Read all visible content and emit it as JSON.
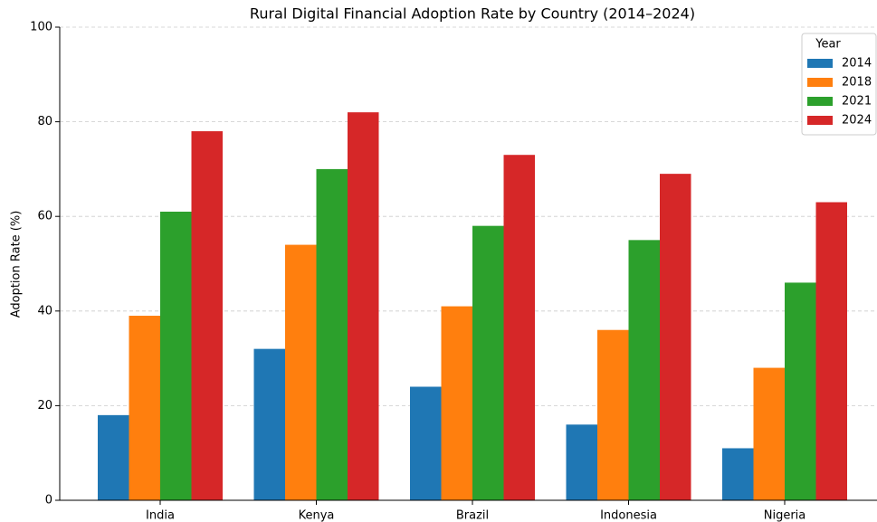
{
  "chart_data": {
    "type": "bar",
    "title": "Rural Digital Financial Adoption Rate by Country (2014–2024)",
    "ylabel": "Adoption Rate (%)",
    "legend_title": "Year",
    "legend_position": "upper right",
    "grid": true,
    "categories": [
      "India",
      "Kenya",
      "Brazil",
      "Indonesia",
      "Nigeria"
    ],
    "series": [
      {
        "name": "2014",
        "color": "#1f77b4",
        "values": [
          18,
          32,
          24,
          16,
          11
        ]
      },
      {
        "name": "2018",
        "color": "#ff7f0e",
        "values": [
          39,
          54,
          41,
          36,
          28
        ]
      },
      {
        "name": "2021",
        "color": "#2ca02c",
        "values": [
          61,
          70,
          58,
          55,
          46
        ]
      },
      {
        "name": "2024",
        "color": "#d62728",
        "values": [
          78,
          82,
          73,
          69,
          63
        ]
      }
    ],
    "ylim": [
      0,
      100
    ],
    "yticks": [
      0,
      20,
      40,
      60,
      80,
      100
    ]
  }
}
